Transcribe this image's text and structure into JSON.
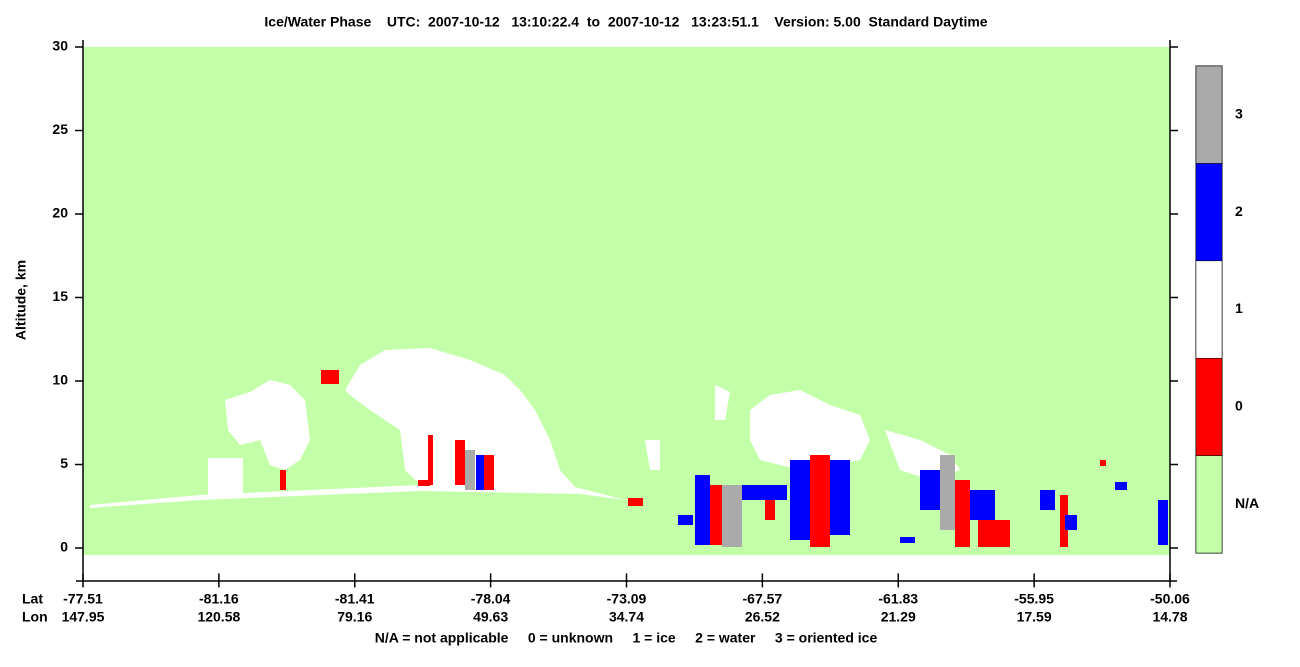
{
  "chart_data": {
    "type": "curtain",
    "title": "Ice/Water Phase    UTC:  2007-10-12   13:10:22.4  to  2007-10-12   13:23:51.1    Version: 5.00  Standard Daytime",
    "ylabel": "Altitude, km",
    "ylim": [
      -2,
      30
    ],
    "yticks": [
      0,
      5,
      10,
      15,
      20,
      25,
      30
    ],
    "x_row_labels": [
      "Lat",
      "Lon"
    ],
    "lat": [
      -77.51,
      -81.16,
      -81.41,
      -78.04,
      -73.09,
      -67.57,
      -61.83,
      -55.95,
      -50.06
    ],
    "lon": [
      147.95,
      120.58,
      79.16,
      49.63,
      34.74,
      26.52,
      21.29,
      17.59,
      14.78
    ],
    "colorbar": {
      "labels": [
        "N/A",
        "0",
        "1",
        "2",
        "3"
      ],
      "colors": [
        "#c3ffa8",
        "#ff0000",
        "#ffffff",
        "#0000ff",
        "#aaaaaa"
      ]
    },
    "footnote": "N/A = not applicable     0 = unknown     1 = ice     2 = water     3 = oriented ice"
  }
}
